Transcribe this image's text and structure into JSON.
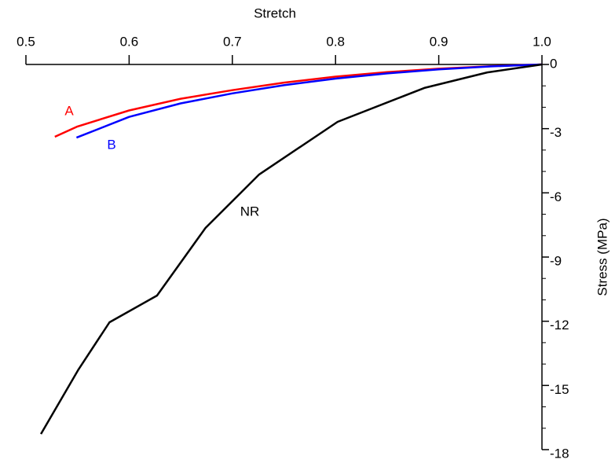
{
  "chart_data": {
    "type": "line",
    "xlabel": "Stretch",
    "ylabel": "Stress (MPa)",
    "xlim": [
      0.5,
      1.0
    ],
    "ylim": [
      0,
      -18
    ],
    "xticks": [
      0.5,
      0.6,
      0.7,
      0.8,
      0.9,
      {
        "value": 1,
        "label": "1.0"
      }
    ],
    "yticks": [
      0,
      -3,
      -6,
      -9,
      -12,
      -15,
      -18
    ],
    "yminorticks": [
      -1,
      -2,
      -4,
      -5,
      -7,
      -8,
      -10,
      -11,
      -13,
      -14,
      -16,
      -17
    ],
    "series": [
      {
        "name": "A",
        "color": "#ff0000",
        "x": [
          0.528,
          0.55,
          0.6,
          0.65,
          0.7,
          0.75,
          0.8,
          0.85,
          0.9,
          0.95,
          1.0
        ],
        "values": [
          -3.38,
          -2.9,
          -2.15,
          -1.6,
          -1.2,
          -0.85,
          -0.57,
          -0.36,
          -0.2,
          -0.08,
          0
        ]
      },
      {
        "name": "B",
        "color": "#0000ff",
        "x": [
          0.549,
          0.6,
          0.65,
          0.7,
          0.75,
          0.8,
          0.85,
          0.9,
          0.95,
          1.0
        ],
        "values": [
          -3.42,
          -2.45,
          -1.82,
          -1.35,
          -0.97,
          -0.66,
          -0.42,
          -0.23,
          -0.09,
          0
        ]
      },
      {
        "name": "NR",
        "color": "#000000",
        "x": [
          0.5145,
          0.551,
          0.581,
          0.627,
          0.674,
          0.726,
          0.802,
          0.886,
          0.947,
          1.0
        ],
        "values": [
          -17.27,
          -14.25,
          -12.05,
          -10.8,
          -7.64,
          -5.14,
          -2.68,
          -1.1,
          -0.37,
          0
        ]
      }
    ]
  }
}
